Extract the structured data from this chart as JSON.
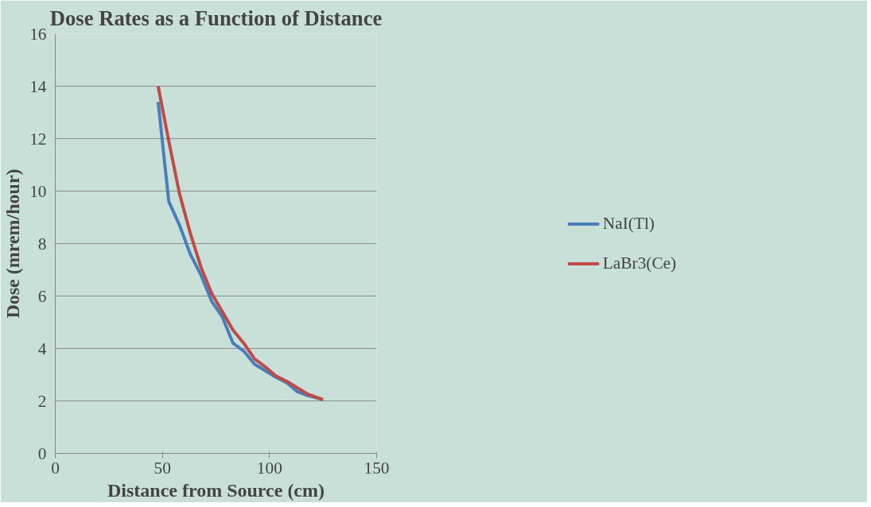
{
  "chart_data": {
    "type": "line",
    "title": "Dose Rates as a Function of Distance",
    "xlabel": "Distance from Source (cm)",
    "ylabel": "Dose (mrem/hour)",
    "xlim": [
      0,
      150
    ],
    "xticks": [
      0,
      50,
      100,
      150
    ],
    "ylim": [
      0,
      16
    ],
    "yticks": [
      0,
      2,
      4,
      6,
      8,
      10,
      12,
      14,
      16
    ],
    "grid": "y",
    "legend": "right",
    "marker": "none",
    "line_style": "solid",
    "x": [
      48,
      53,
      58,
      63,
      68,
      73,
      78,
      83,
      88,
      93,
      98,
      103,
      108,
      113,
      118,
      125
    ],
    "series": [
      {
        "name": "NaI(Tl)",
        "color": "#4a7ebb",
        "values": [
          13.4,
          9.6,
          8.7,
          7.6,
          6.8,
          5.8,
          5.2,
          4.2,
          3.9,
          3.4,
          3.15,
          2.9,
          2.7,
          2.35,
          2.2,
          2.05
        ]
      },
      {
        "name": "LaBr3(Ce)",
        "color": "#be4b48",
        "values": [
          14.0,
          11.9,
          9.9,
          8.4,
          7.1,
          6.1,
          5.4,
          4.7,
          4.2,
          3.6,
          3.3,
          2.95,
          2.75,
          2.5,
          2.25,
          2.05
        ]
      }
    ]
  }
}
